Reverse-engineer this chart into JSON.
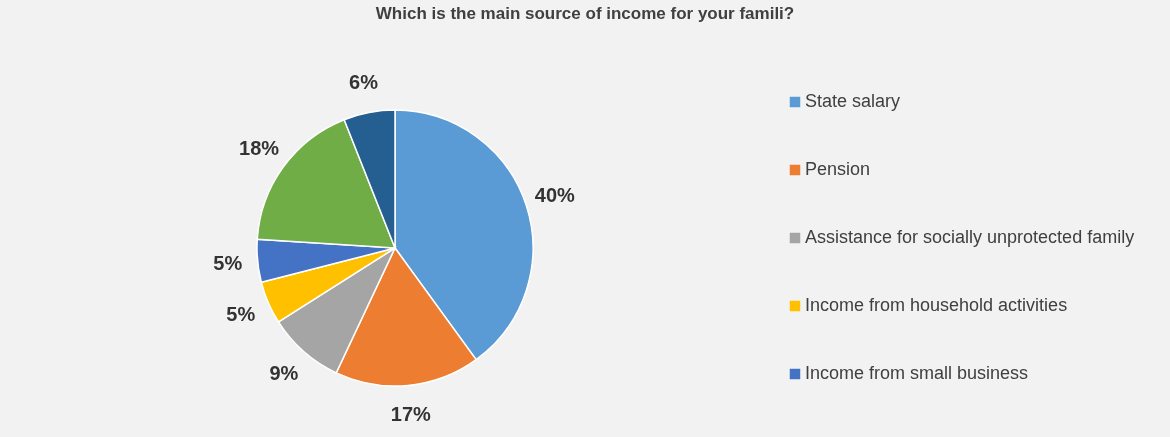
{
  "chart_data": {
    "type": "pie",
    "title": "Which is the main source of income for your famili?",
    "categories": [
      "State salary",
      "Pension",
      "Assistance for socially unprotected family",
      "Income from household activities",
      "Income from small business",
      null,
      null
    ],
    "values": [
      40,
      17,
      9,
      5,
      5,
      18,
      6
    ],
    "colors": [
      "#5b9bd5",
      "#ed7d31",
      "#a5a5a5",
      "#ffc000",
      "#4472c4",
      "#70ad47",
      "#255e91"
    ],
    "value_labels": [
      "40%",
      "17%",
      "9%",
      "5%",
      "5%",
      "18%",
      "6%"
    ],
    "legend": "right"
  }
}
